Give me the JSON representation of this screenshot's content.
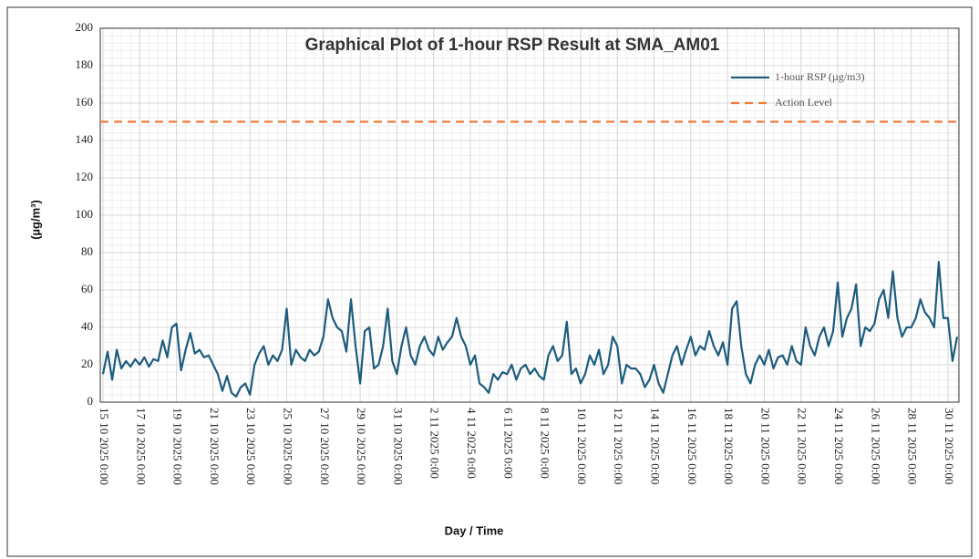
{
  "chart_data": {
    "type": "line",
    "title": "Graphical Plot of 1-hour RSP Result at SMA_AM01",
    "x_label": "Day / Time",
    "y_label": "(µg/m³)",
    "ylim": [
      0,
      200
    ],
    "yticks": [
      0,
      20,
      40,
      60,
      80,
      100,
      120,
      140,
      160,
      180,
      200
    ],
    "grid": true,
    "legend": "upper right",
    "categories": [
      "15 10 2025 0:00",
      null,
      null,
      null,
      null,
      null,
      null,
      null,
      "17 10 2025 0:00",
      null,
      null,
      null,
      null,
      null,
      null,
      null,
      "19 10 2025 0:00",
      null,
      null,
      null,
      null,
      null,
      null,
      null,
      "21 10 2025 0:00",
      null,
      null,
      null,
      null,
      null,
      null,
      null,
      "23 10 2025 0:00",
      null,
      null,
      null,
      null,
      null,
      null,
      null,
      "25 10 2025 0:00",
      null,
      null,
      null,
      null,
      null,
      null,
      null,
      "27 10 2025 0:00",
      null,
      null,
      null,
      null,
      null,
      null,
      null,
      "29 10 2025 0:00",
      null,
      null,
      null,
      null,
      null,
      null,
      null,
      "31 10 2025 0:00",
      null,
      null,
      null,
      null,
      null,
      null,
      null,
      "2 11 2025 0:00",
      null,
      null,
      null,
      null,
      null,
      null,
      null,
      "4 11 2025 0:00",
      null,
      null,
      null,
      null,
      null,
      null,
      null,
      "6 11 2025 0:00",
      null,
      null,
      null,
      null,
      null,
      null,
      null,
      "8 11 2025 0:00",
      null,
      null,
      null,
      null,
      null,
      null,
      null,
      "10 11 2025 0:00",
      null,
      null,
      null,
      null,
      null,
      null,
      null,
      "12 11 2025 0:00",
      null,
      null,
      null,
      null,
      null,
      null,
      null,
      "14 11 2025 0:00",
      null,
      null,
      null,
      null,
      null,
      null,
      null,
      "16 11 2025 0:00",
      null,
      null,
      null,
      null,
      null,
      null,
      null,
      "18 11 2025 0:00",
      null,
      null,
      null,
      null,
      null,
      null,
      null,
      "20 11 2025 0:00",
      null,
      null,
      null,
      null,
      null,
      null,
      null,
      "22 11 2025 0:00",
      null,
      null,
      null,
      null,
      null,
      null,
      null,
      "24 11 2025 0:00",
      null,
      null,
      null,
      null,
      null,
      null,
      null,
      "26 11 2025 0:00",
      null,
      null,
      null,
      null,
      null,
      null,
      null,
      "28 11 2025 0:00",
      null,
      null,
      null,
      null,
      null,
      null,
      null,
      "30 11 2025 0:00",
      null,
      null
    ],
    "series": [
      {
        "name": "1-hour RSP (µg/m3)",
        "color": "#1d5c7d",
        "values": [
          15,
          27,
          12,
          28,
          18,
          22,
          19,
          23,
          20,
          24,
          19,
          23,
          22,
          33,
          24,
          40,
          42,
          17,
          28,
          37,
          26,
          28,
          24,
          25,
          20,
          15,
          6,
          14,
          5,
          3,
          8,
          10,
          4,
          20,
          26,
          30,
          20,
          25,
          22,
          28,
          50,
          20,
          28,
          24,
          22,
          28,
          25,
          27,
          35,
          55,
          45,
          40,
          38,
          27,
          55,
          30,
          10,
          38,
          40,
          18,
          20,
          30,
          50,
          22,
          15,
          30,
          40,
          25,
          20,
          30,
          35,
          28,
          25,
          35,
          28,
          32,
          35,
          45,
          35,
          30,
          20,
          25,
          10,
          8,
          5,
          15,
          12,
          16,
          15,
          20,
          12,
          18,
          20,
          15,
          18,
          14,
          12,
          25,
          30,
          22,
          25,
          43,
          15,
          18,
          10,
          15,
          25,
          20,
          28,
          15,
          20,
          35,
          30,
          10,
          20,
          18,
          18,
          15,
          8,
          12,
          20,
          10,
          5,
          15,
          25,
          30,
          20,
          28,
          35,
          25,
          30,
          28,
          38,
          30,
          25,
          32,
          20,
          50,
          54,
          30,
          15,
          10,
          20,
          25,
          20,
          28,
          18,
          24,
          25,
          20,
          30,
          22,
          20,
          40,
          30,
          25,
          35,
          40,
          30,
          38,
          64,
          35,
          45,
          50,
          63,
          30,
          40,
          38,
          42,
          55,
          60,
          45,
          70,
          45,
          35,
          40,
          40,
          45,
          55,
          48,
          45,
          40,
          75,
          45,
          45,
          22,
          35
        ]
      }
    ],
    "reference_lines": [
      {
        "name": "Action Level",
        "value": 150,
        "color": "#ee7d3a",
        "dashed": true
      }
    ]
  }
}
